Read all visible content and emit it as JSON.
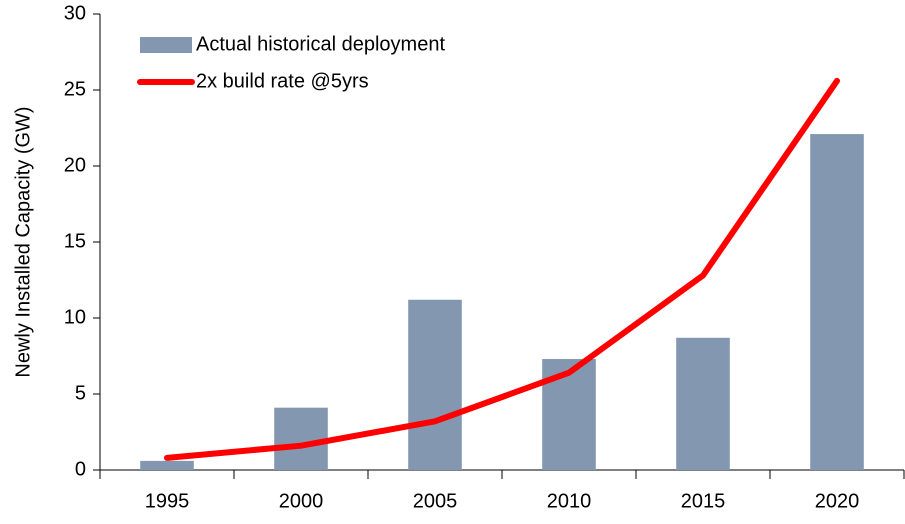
{
  "chart_data": {
    "type": "bar",
    "y_label": "Newly Installed Capacity (GW)",
    "categories": [
      "1995",
      "2000",
      "2005",
      "2010",
      "2015",
      "2020"
    ],
    "series": [
      {
        "name": "Actual historical deployment",
        "type": "bar",
        "color": "#8497b0",
        "values": [
          0.6,
          4.1,
          11.2,
          7.3,
          8.7,
          22.1
        ]
      },
      {
        "name": "2x build rate @5yrs",
        "type": "line",
        "color": "#ff0000",
        "values": [
          0.8,
          1.6,
          3.2,
          6.4,
          12.8,
          25.6
        ]
      }
    ],
    "ylim": [
      0,
      30
    ],
    "yticks": [
      0,
      5,
      10,
      15,
      20,
      25,
      30
    ],
    "grid": false,
    "legend": "top-left"
  }
}
